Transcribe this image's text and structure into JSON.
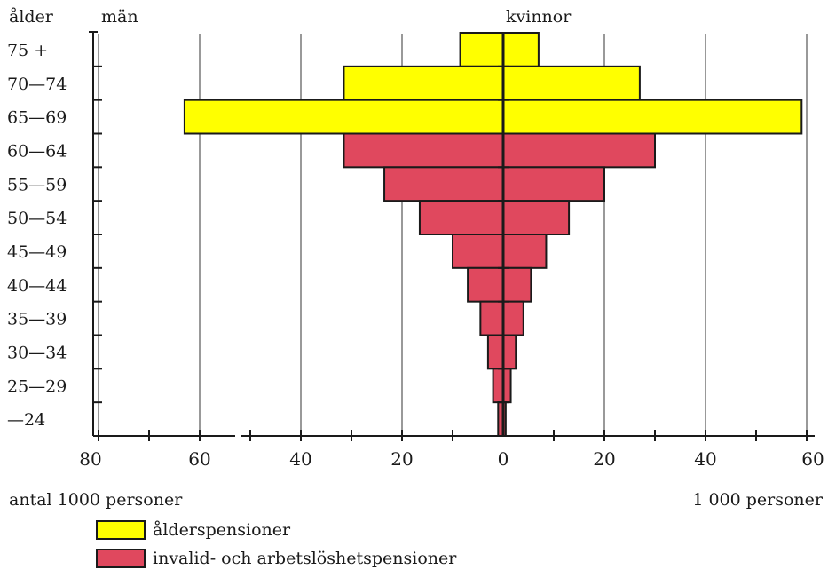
{
  "chart_data": {
    "type": "bar",
    "subtype": "population-pyramid",
    "y_axis_title": "ålder",
    "left_header": "män",
    "right_header": "kvinnor",
    "categories": [
      "75 +",
      "70—74",
      "65—69",
      "60—64",
      "55—59",
      "50—54",
      "45—49",
      "40—44",
      "35—39",
      "30—34",
      "25—29",
      "—24"
    ],
    "x_ticks_left": [
      "80",
      "60",
      "40",
      "20",
      "0"
    ],
    "x_ticks_right": [
      "20",
      "40",
      "60"
    ],
    "xlim_left": [
      0,
      80
    ],
    "xlim_right": [
      0,
      60
    ],
    "unit_left": "antal   1000   personer",
    "unit_right": "1 000 personer",
    "series": [
      {
        "name": "ålderspensioner",
        "color": "#ffff00",
        "men": [
          8.5,
          31.5,
          63,
          0,
          0,
          0,
          0,
          0,
          0,
          0,
          0,
          0
        ],
        "women": [
          7,
          27,
          59,
          0,
          0,
          0,
          0,
          0,
          0,
          0,
          0,
          0
        ]
      },
      {
        "name": "invalid- och   arbetslöshetspensioner",
        "color": "#e0485e",
        "men": [
          0,
          0,
          0,
          31.5,
          23.5,
          16.5,
          10,
          7,
          4.5,
          3,
          2,
          1
        ],
        "women": [
          0,
          0,
          0,
          30,
          20,
          13,
          8.5,
          5.5,
          4,
          2.5,
          1.5,
          0.5
        ]
      }
    ],
    "grid": true
  }
}
